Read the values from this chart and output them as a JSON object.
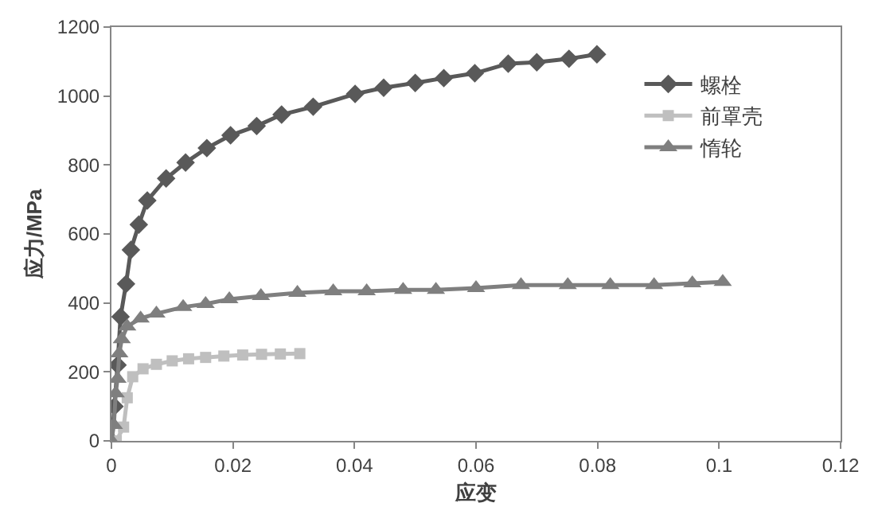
{
  "chart_data": {
    "type": "line",
    "xlabel": "应变",
    "ylabel": "应力/MPa",
    "xlim": [
      0,
      0.12
    ],
    "xticks": [
      0,
      0.02,
      0.04,
      0.06,
      0.08,
      0.1,
      0.12
    ],
    "ylim": [
      0,
      1200
    ],
    "yticks": [
      0,
      200,
      400,
      600,
      800,
      1000,
      1200
    ],
    "grid": false,
    "legend": "top right",
    "line_style": "solid",
    "series": [
      {
        "name": "螺栓",
        "color": "#595959",
        "marker": "diamond",
        "x": [
          0,
          0.0005,
          0.001,
          0.0015,
          0.0024,
          0.0032,
          0.0045,
          0.0059,
          0.009,
          0.0122,
          0.0157,
          0.0196,
          0.0239,
          0.028,
          0.0332,
          0.0401,
          0.0448,
          0.05,
          0.0547,
          0.0598,
          0.0653,
          0.07,
          0.0753,
          0.0799
        ],
        "values": [
          0,
          100,
          220,
          360,
          455,
          554,
          627,
          697,
          761,
          807,
          849,
          886,
          913,
          946,
          969,
          1006,
          1024,
          1038,
          1052,
          1066,
          1094,
          1098,
          1108,
          1121
        ]
      },
      {
        "name": "前罩壳",
        "color": "#bfbfbf",
        "marker": "square",
        "x": [
          0.0008,
          0.002,
          0.0026,
          0.0035,
          0.0052,
          0.0074,
          0.01,
          0.0127,
          0.0155,
          0.0185,
          0.0216,
          0.0247,
          0.0278,
          0.031
        ],
        "values": [
          0,
          40,
          125,
          186,
          209,
          222,
          232,
          238,
          242,
          246,
          249,
          251,
          252,
          253
        ]
      },
      {
        "name": "惰轮",
        "color": "#7f7f7f",
        "marker": "triangle",
        "x": [
          0,
          0.0004,
          0.0007,
          0.001,
          0.0013,
          0.0017,
          0.0026,
          0.0048,
          0.0074,
          0.0118,
          0.0155,
          0.0194,
          0.0246,
          0.0306,
          0.0365,
          0.042,
          0.048,
          0.0534,
          0.06,
          0.0674,
          0.0751,
          0.0821,
          0.0893,
          0.0956,
          0.1006
        ],
        "values": [
          0,
          46,
          138,
          180,
          254,
          295,
          332,
          355,
          369,
          388,
          397,
          411,
          420,
          429,
          434,
          434,
          438,
          438,
          443,
          452,
          452,
          452,
          452,
          457,
          461
        ]
      }
    ]
  }
}
